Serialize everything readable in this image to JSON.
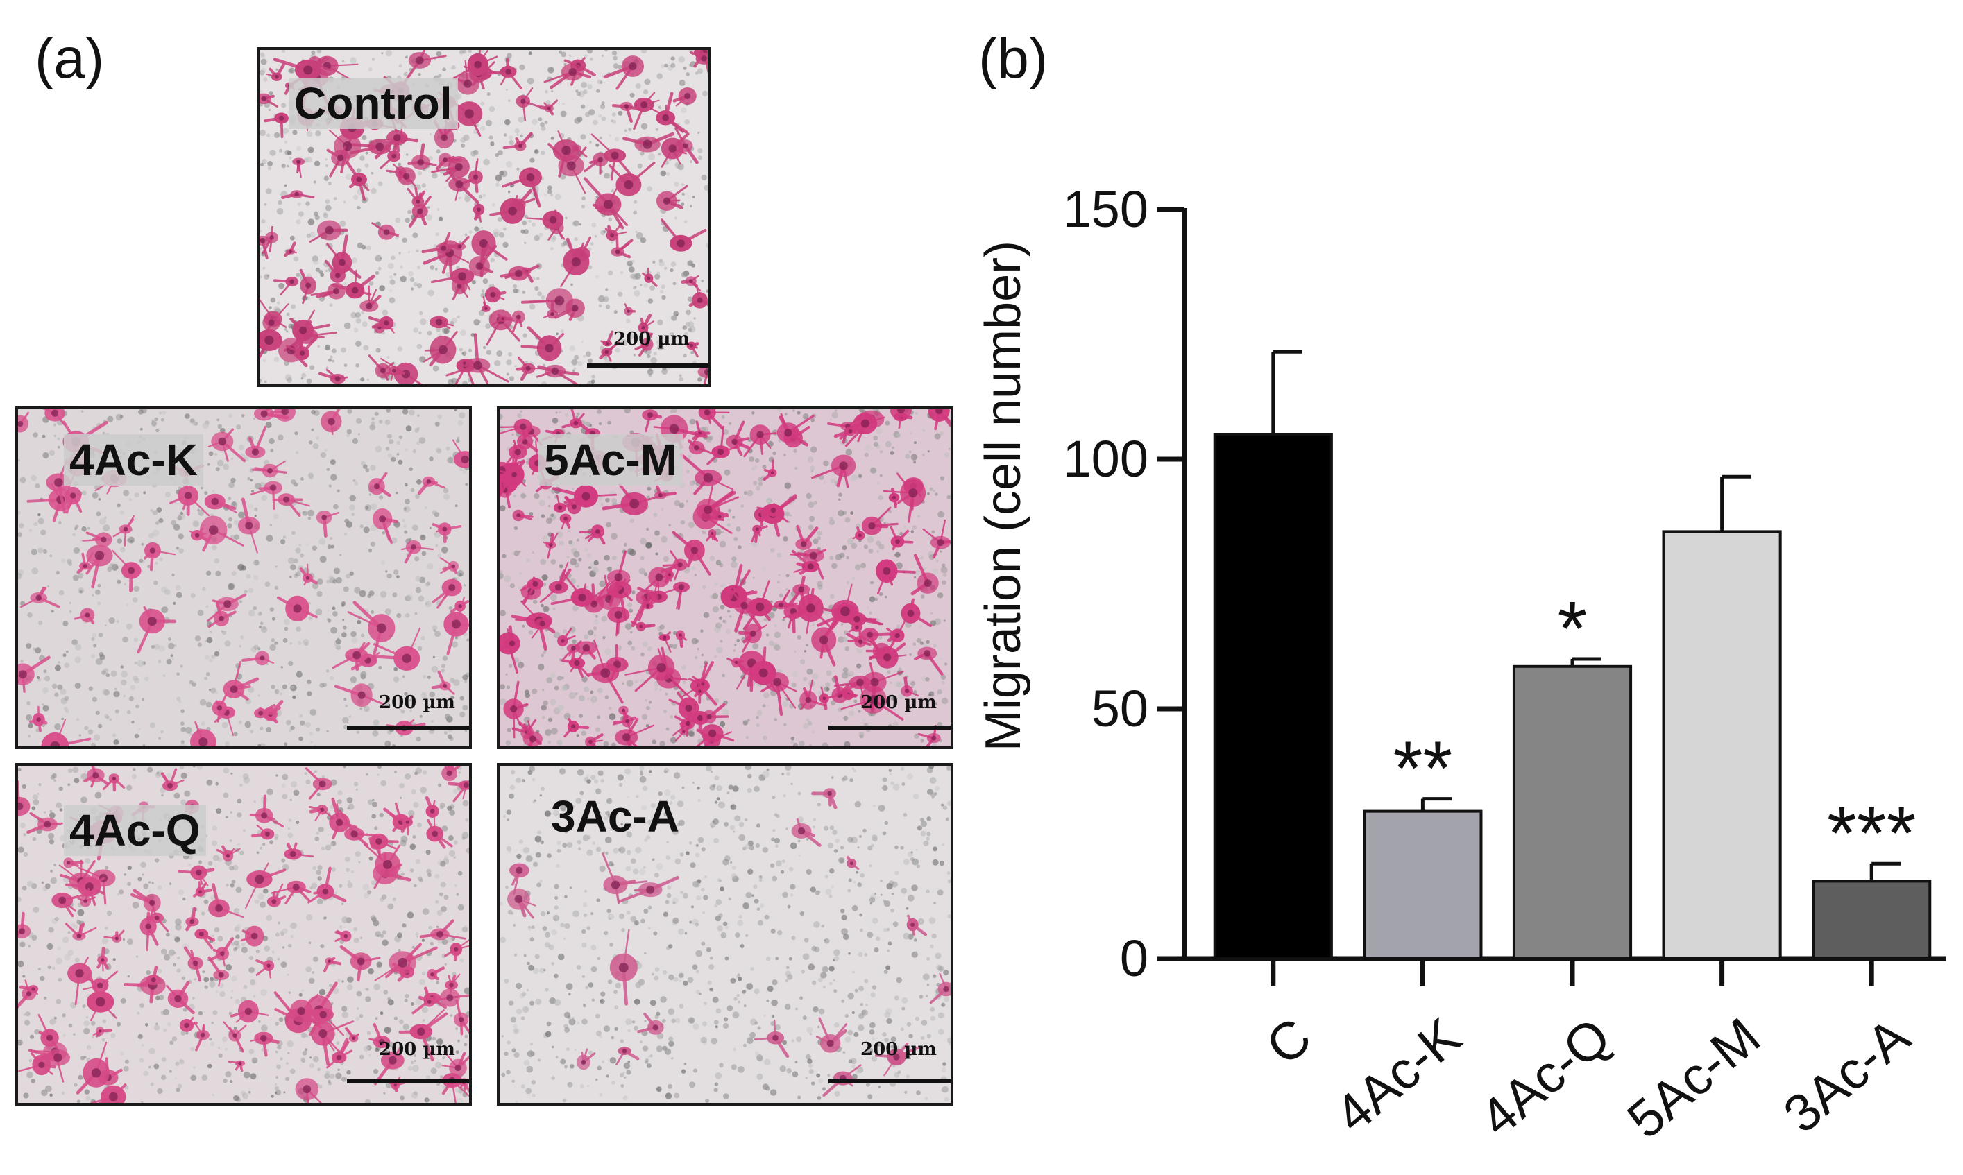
{
  "panel_a": {
    "letter": "(a)",
    "images": [
      {
        "id": "control",
        "label": "Control",
        "scale": "200 µm",
        "density": 1.0,
        "tint": "#c8407a",
        "bg": "#e6e2e4"
      },
      {
        "id": "4ac-k",
        "label": "4Ac-K",
        "scale": "200 µm",
        "density": 0.45,
        "tint": "#d9508c",
        "bg": "#ddd7da"
      },
      {
        "id": "5ac-m",
        "label": "5Ac-M",
        "scale": "200 µm",
        "density": 1.1,
        "tint": "#d23a7e",
        "bg": "#dcc7d2"
      },
      {
        "id": "4ac-q",
        "label": "4Ac-Q",
        "scale": "200 µm",
        "density": 0.75,
        "tint": "#d64a86",
        "bg": "#e2d9dd"
      },
      {
        "id": "3ac-a",
        "label": "3Ac-A",
        "scale": "200 µm",
        "density": 0.12,
        "tint": "#cf5a8e",
        "bg": "#e3dfe1"
      }
    ]
  },
  "panel_b": {
    "letter": "(b)"
  },
  "chart_data": {
    "type": "bar",
    "categories": [
      "C",
      "4Ac-K",
      "4Ac-Q",
      "5Ac-M",
      "3Ac-A"
    ],
    "values": [
      105,
      29.5,
      58.5,
      85.5,
      15.5
    ],
    "errors": [
      16.5,
      2.5,
      1.5,
      11,
      3.5
    ],
    "significance": [
      "",
      "**",
      "*",
      "",
      "***"
    ],
    "bar_colors": [
      "#000000",
      "#a3a3ab",
      "#858585",
      "#d6d6d6",
      "#5e5e5e"
    ],
    "ylabel": "Migration (cell number)",
    "xlabel": "",
    "ylim": [
      0,
      150
    ],
    "yticks": [
      0,
      50,
      100,
      150
    ],
    "grid": false,
    "legend": "none"
  }
}
